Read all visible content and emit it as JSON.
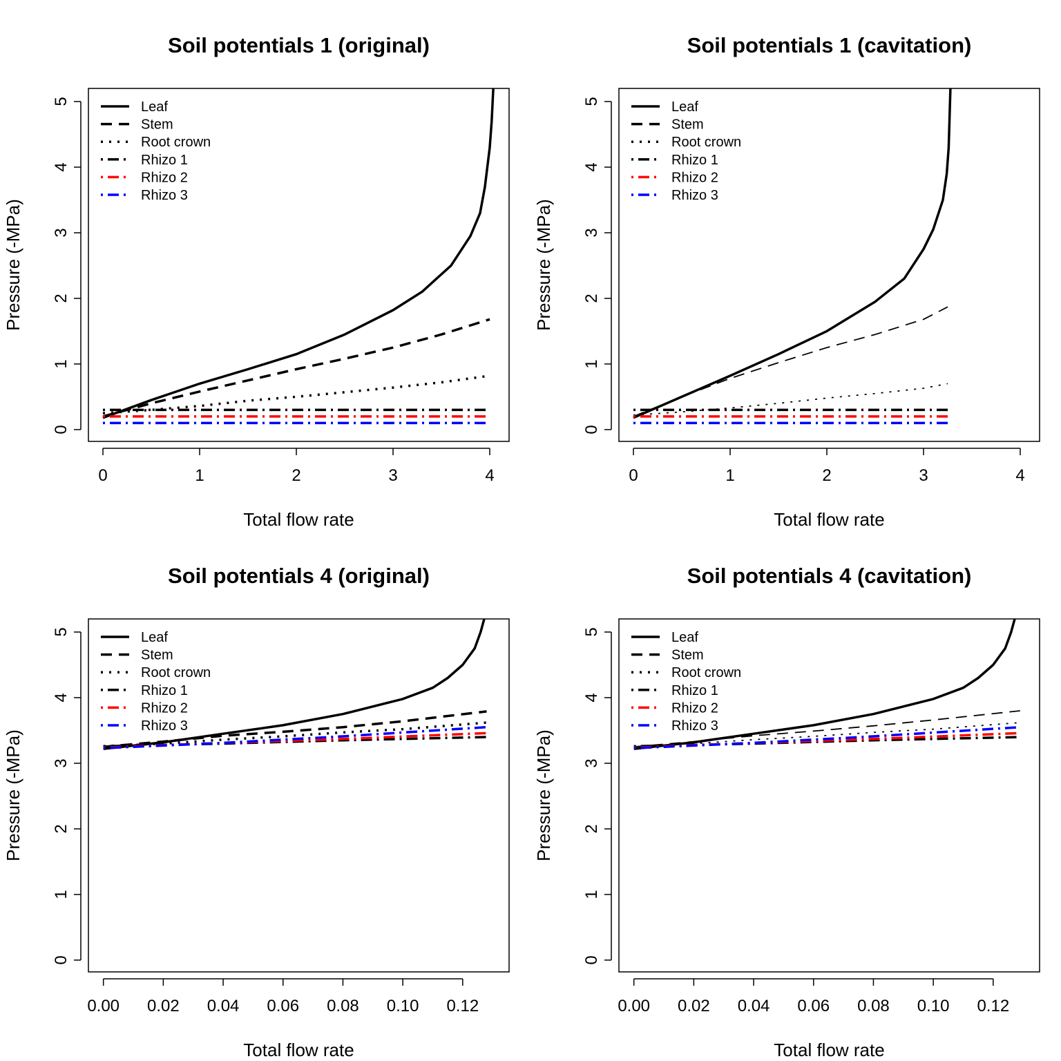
{
  "legend_entries": [
    "Leaf",
    "Stem",
    "Root crown",
    "Rhizo 1",
    "Rhizo 2",
    "Rhizo 3"
  ],
  "colors": {
    "black": "#000000",
    "red": "#ff0000",
    "blue": "#0000ff"
  },
  "chart_data": [
    {
      "type": "line",
      "title": "Soil potentials 1 (original)",
      "xlabel": "Total flow rate",
      "ylabel": "Pressure (-MPa)",
      "xticks": [
        "0",
        "1",
        "2",
        "3",
        "4"
      ],
      "yticks": [
        "0",
        "1",
        "2",
        "3",
        "4",
        "5"
      ],
      "xlim": [
        -0.15,
        4.2
      ],
      "ylim": [
        -0.18,
        5.2
      ],
      "legend_position": "top-left",
      "series": [
        {
          "name": "Leaf",
          "x": [
            0,
            0.5,
            1,
            1.5,
            2,
            2.5,
            3,
            3.3,
            3.6,
            3.8,
            3.9,
            3.95,
            4.0,
            4.02,
            4.03,
            4.04
          ],
          "y": [
            0.18,
            0.45,
            0.7,
            0.92,
            1.15,
            1.45,
            1.82,
            2.1,
            2.5,
            2.95,
            3.3,
            3.7,
            4.3,
            4.7,
            5.0,
            5.3
          ],
          "color": "black",
          "dash": "solid",
          "width": 3.5
        },
        {
          "name": "Stem",
          "x": [
            0,
            0.5,
            1,
            1.5,
            2,
            2.5,
            3,
            3.5,
            4
          ],
          "y": [
            0.2,
            0.4,
            0.58,
            0.75,
            0.92,
            1.08,
            1.25,
            1.45,
            1.68
          ],
          "color": "black",
          "dash": "dashed",
          "width": 3.5
        },
        {
          "name": "Root crown",
          "x": [
            0,
            0.5,
            1,
            1.5,
            2,
            2.5,
            3,
            3.5,
            4
          ],
          "y": [
            0.25,
            0.3,
            0.36,
            0.44,
            0.5,
            0.57,
            0.64,
            0.72,
            0.82
          ],
          "color": "black",
          "dash": "dotted",
          "width": 3.5
        },
        {
          "name": "Rhizo 1",
          "x": [
            0,
            4
          ],
          "y": [
            0.3,
            0.3
          ],
          "color": "black",
          "dash": "dotdash",
          "width": 3.5
        },
        {
          "name": "Rhizo 2",
          "x": [
            0,
            4
          ],
          "y": [
            0.2,
            0.2
          ],
          "color": "red",
          "dash": "dotdash",
          "width": 3.5
        },
        {
          "name": "Rhizo 3",
          "x": [
            0,
            4
          ],
          "y": [
            0.1,
            0.1
          ],
          "color": "blue",
          "dash": "dotdash",
          "width": 3.5
        }
      ]
    },
    {
      "type": "line",
      "title": "Soil potentials 1 (cavitation)",
      "xlabel": "Total flow rate",
      "ylabel": "Pressure (-MPa)",
      "xticks": [
        "0",
        "1",
        "2",
        "3",
        "4"
      ],
      "yticks": [
        "0",
        "1",
        "2",
        "3",
        "4",
        "5"
      ],
      "xlim": [
        -0.15,
        4.2
      ],
      "ylim": [
        -0.18,
        5.2
      ],
      "legend_position": "top-left",
      "series": [
        {
          "name": "Leaf",
          "x": [
            0,
            0.5,
            1,
            1.5,
            2,
            2.5,
            2.8,
            3.0,
            3.1,
            3.2,
            3.24,
            3.26,
            3.27,
            3.28
          ],
          "y": [
            0.18,
            0.5,
            0.82,
            1.15,
            1.5,
            1.95,
            2.3,
            2.75,
            3.05,
            3.5,
            3.9,
            4.3,
            4.8,
            5.3
          ],
          "color": "black",
          "dash": "solid",
          "width": 3.5
        },
        {
          "name": "Stem",
          "x": [
            0,
            0.5,
            1,
            1.5,
            2,
            2.5,
            3,
            3.25
          ],
          "y": [
            0.2,
            0.5,
            0.78,
            1.02,
            1.25,
            1.45,
            1.68,
            1.87
          ],
          "color": "black",
          "dash": "dashed",
          "width": 1.8
        },
        {
          "name": "Root crown",
          "x": [
            0,
            0.5,
            1,
            1.5,
            2,
            2.5,
            3,
            3.25
          ],
          "y": [
            0.22,
            0.27,
            0.33,
            0.4,
            0.48,
            0.55,
            0.63,
            0.7
          ],
          "color": "black",
          "dash": "dotted",
          "width": 1.8
        },
        {
          "name": "Rhizo 1",
          "x": [
            0,
            3.25
          ],
          "y": [
            0.3,
            0.3
          ],
          "color": "black",
          "dash": "dotdash",
          "width": 3.5
        },
        {
          "name": "Rhizo 2",
          "x": [
            0,
            3.25
          ],
          "y": [
            0.2,
            0.2
          ],
          "color": "red",
          "dash": "dotdash",
          "width": 3.5
        },
        {
          "name": "Rhizo 3",
          "x": [
            0,
            3.25
          ],
          "y": [
            0.1,
            0.1
          ],
          "color": "blue",
          "dash": "dotdash",
          "width": 3.5
        }
      ]
    },
    {
      "type": "line",
      "title": "Soil potentials 4 (original)",
      "xlabel": "Total flow rate",
      "ylabel": "Pressure (-MPa)",
      "xticks": [
        "0.00",
        "0.02",
        "0.04",
        "0.06",
        "0.08",
        "0.10",
        "0.12"
      ],
      "yticks": [
        "0",
        "1",
        "2",
        "3",
        "4",
        "5"
      ],
      "xlim": [
        -0.005,
        0.1355
      ],
      "ylim": [
        -0.18,
        5.2
      ],
      "legend_position": "top-left",
      "series": [
        {
          "name": "Leaf",
          "x": [
            0,
            0.02,
            0.04,
            0.06,
            0.08,
            0.1,
            0.11,
            0.115,
            0.12,
            0.124,
            0.126,
            0.1275
          ],
          "y": [
            3.22,
            3.32,
            3.45,
            3.58,
            3.75,
            3.98,
            4.15,
            4.3,
            4.5,
            4.75,
            5.0,
            5.25
          ],
          "color": "black",
          "dash": "solid",
          "width": 3.5
        },
        {
          "name": "Stem",
          "x": [
            0,
            0.02,
            0.04,
            0.06,
            0.08,
            0.1,
            0.128
          ],
          "y": [
            3.25,
            3.33,
            3.42,
            3.48,
            3.55,
            3.64,
            3.79
          ],
          "color": "black",
          "dash": "dashed",
          "width": 3.5
        },
        {
          "name": "Root crown",
          "x": [
            0,
            0.02,
            0.04,
            0.06,
            0.08,
            0.1,
            0.128
          ],
          "y": [
            3.26,
            3.3,
            3.36,
            3.41,
            3.47,
            3.52,
            3.62
          ],
          "color": "black",
          "dash": "dotted",
          "width": 3.5
        },
        {
          "name": "Rhizo 1",
          "x": [
            0,
            0.04,
            0.08,
            0.128
          ],
          "y": [
            3.26,
            3.3,
            3.35,
            3.4
          ],
          "color": "black",
          "dash": "dotdash",
          "width": 3.5
        },
        {
          "name": "Rhizo 2",
          "x": [
            0,
            0.04,
            0.08,
            0.128
          ],
          "y": [
            3.24,
            3.31,
            3.37,
            3.46
          ],
          "color": "red",
          "dash": "dotdash",
          "width": 3.5
        },
        {
          "name": "Rhizo 3",
          "x": [
            0,
            0.04,
            0.08,
            0.128
          ],
          "y": [
            3.23,
            3.31,
            3.41,
            3.55
          ],
          "color": "blue",
          "dash": "dotdash",
          "width": 3.5
        }
      ]
    },
    {
      "type": "line",
      "title": "Soil potentials 4 (cavitation)",
      "xlabel": "Total flow rate",
      "ylabel": "Pressure (-MPa)",
      "xticks": [
        "0.00",
        "0.02",
        "0.04",
        "0.06",
        "0.08",
        "0.10",
        "0.12"
      ],
      "yticks": [
        "0",
        "1",
        "2",
        "3",
        "4",
        "5"
      ],
      "xlim": [
        -0.005,
        0.1355
      ],
      "ylim": [
        -0.18,
        5.2
      ],
      "legend_position": "top-left",
      "series": [
        {
          "name": "Leaf",
          "x": [
            0,
            0.02,
            0.04,
            0.06,
            0.08,
            0.1,
            0.11,
            0.115,
            0.12,
            0.124,
            0.126,
            0.1275
          ],
          "y": [
            3.22,
            3.32,
            3.45,
            3.58,
            3.75,
            3.98,
            4.15,
            4.3,
            4.5,
            4.75,
            5.0,
            5.25
          ],
          "color": "black",
          "dash": "solid",
          "width": 3.5
        },
        {
          "name": "Stem",
          "x": [
            0,
            0.02,
            0.04,
            0.06,
            0.08,
            0.1,
            0.129
          ],
          "y": [
            3.25,
            3.33,
            3.42,
            3.49,
            3.57,
            3.66,
            3.8
          ],
          "color": "black",
          "dash": "dashed",
          "width": 1.8
        },
        {
          "name": "Root crown",
          "x": [
            0,
            0.02,
            0.04,
            0.06,
            0.08,
            0.1,
            0.129
          ],
          "y": [
            3.26,
            3.3,
            3.36,
            3.41,
            3.47,
            3.52,
            3.62
          ],
          "color": "black",
          "dash": "dotted",
          "width": 1.8
        },
        {
          "name": "Rhizo 1",
          "x": [
            0,
            0.04,
            0.08,
            0.129
          ],
          "y": [
            3.26,
            3.3,
            3.35,
            3.4
          ],
          "color": "black",
          "dash": "dotdash",
          "width": 3.5
        },
        {
          "name": "Rhizo 2",
          "x": [
            0,
            0.04,
            0.08,
            0.129
          ],
          "y": [
            3.24,
            3.31,
            3.37,
            3.46
          ],
          "color": "red",
          "dash": "dotdash",
          "width": 3.5
        },
        {
          "name": "Rhizo 3",
          "x": [
            0,
            0.04,
            0.08,
            0.129
          ],
          "y": [
            3.23,
            3.31,
            3.41,
            3.55
          ],
          "color": "blue",
          "dash": "dotdash",
          "width": 3.5
        }
      ]
    }
  ]
}
